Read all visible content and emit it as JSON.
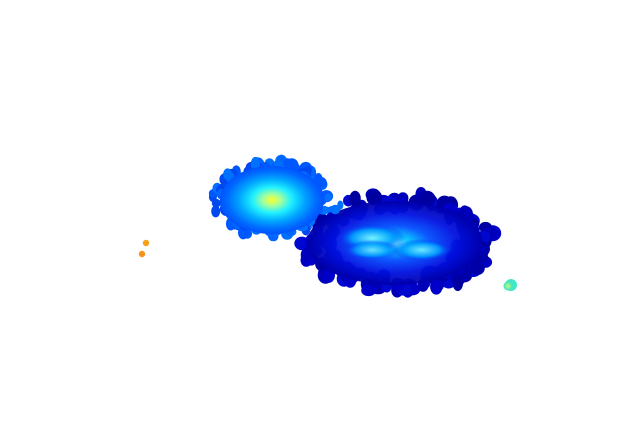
{
  "figure": {
    "background": "#ffffff",
    "colormap": "jet",
    "clusters": [
      {
        "name": "upper-left-cluster",
        "peak_color": "#ffff40"
      },
      {
        "name": "lower-right-cluster",
        "peak_color": "#7ff7ff"
      }
    ],
    "outlier_points": [
      {
        "name": "orange-outlier-top",
        "color": "#f7a11a"
      },
      {
        "name": "orange-outlier-bottom",
        "color": "#f7951a"
      },
      {
        "name": "green-outlier",
        "color": "#9ef76b"
      }
    ]
  }
}
